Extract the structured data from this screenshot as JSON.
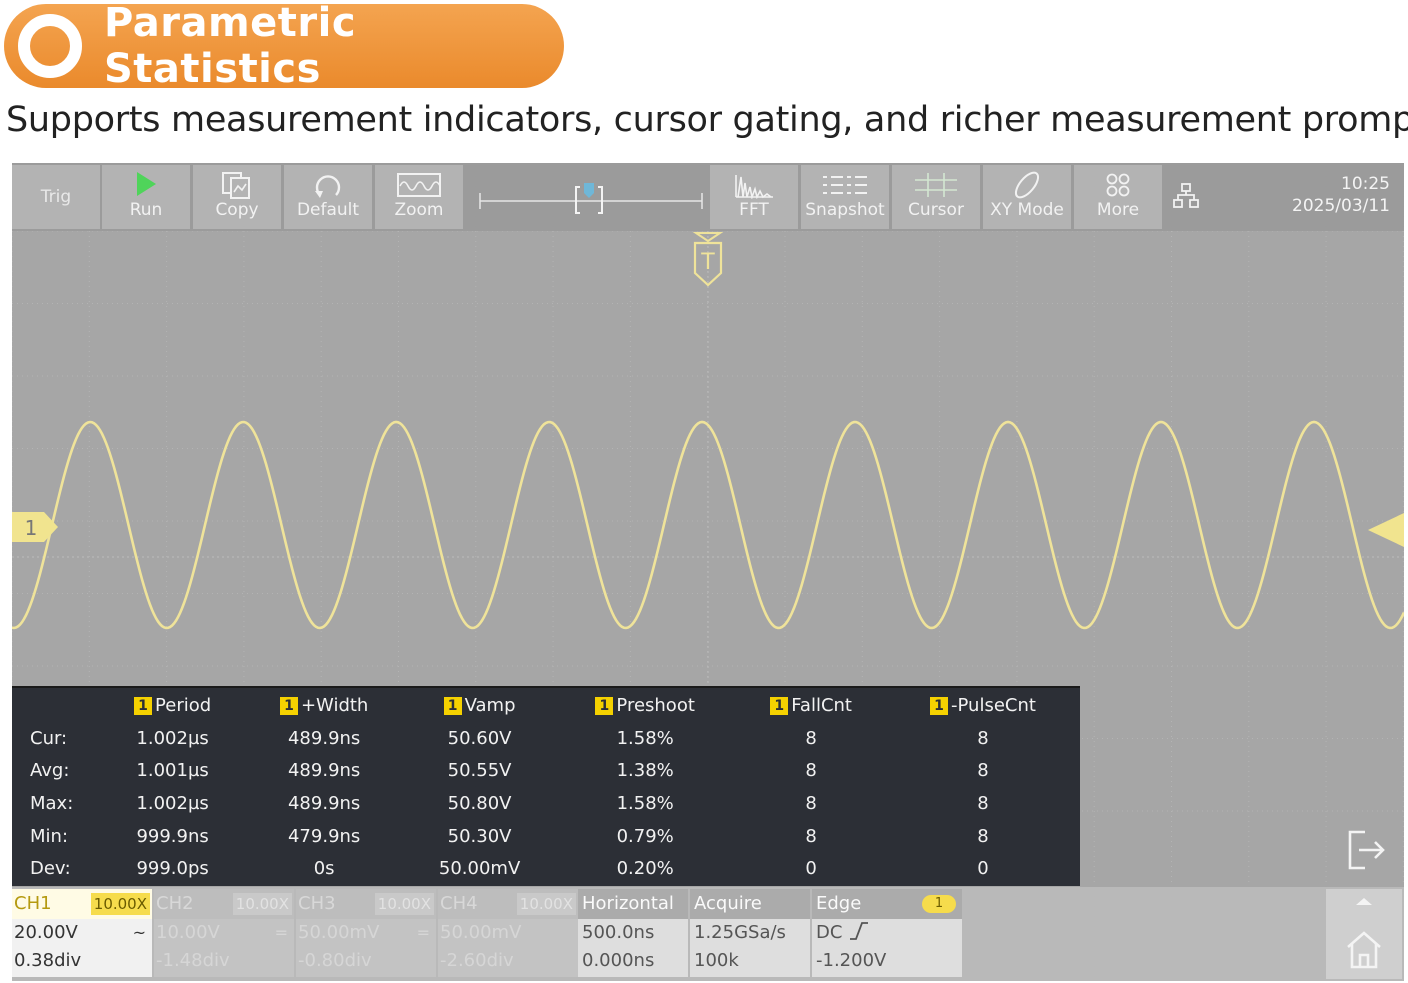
{
  "banner": {
    "title": "Parametric Statistics"
  },
  "subtitle": "Supports measurement indicators, cursor gating, and richer measurement prompts.",
  "toolbar": {
    "trig": "Trig",
    "run": "Run",
    "copy": "Copy",
    "default": "Default",
    "zoom": "Zoom",
    "fft": "FFT",
    "snapshot": "Snapshot",
    "cursor": "Cursor",
    "xy_mode": "XY Mode",
    "more": "More",
    "time": "10:25",
    "date": "2025/03/11"
  },
  "plot": {
    "trigger_label": "T",
    "ch1_marker": "1",
    "waveform_color": "#efe39a",
    "cycles_visible": 9.1
  },
  "measurements": {
    "channel_badge": "1",
    "headers": [
      "Period",
      "+Width",
      "Vamp",
      "Preshoot",
      "FallCnt",
      "-PulseCnt"
    ],
    "rows": [
      {
        "label": "Cur:",
        "values": [
          "1.002µs",
          "489.9ns",
          "50.60V",
          "1.58%",
          "8",
          "8"
        ]
      },
      {
        "label": "Avg:",
        "values": [
          "1.001µs",
          "489.9ns",
          "50.55V",
          "1.38%",
          "8",
          "8"
        ]
      },
      {
        "label": "Max:",
        "values": [
          "1.002µs",
          "489.9ns",
          "50.80V",
          "1.58%",
          "8",
          "8"
        ]
      },
      {
        "label": "Min:",
        "values": [
          "999.9ns",
          "479.9ns",
          "50.30V",
          "0.79%",
          "8",
          "8"
        ]
      },
      {
        "label": "Dev:",
        "values": [
          "999.0ps",
          "0s",
          "50.00mV",
          "0.20%",
          "0",
          "0"
        ]
      }
    ]
  },
  "channels": [
    {
      "name": "CH1",
      "probe": "10.00X",
      "scale": "20.00V",
      "offset": "0.38div",
      "coupling": "~"
    },
    {
      "name": "CH2",
      "probe": "10.00X",
      "scale": "10.00V",
      "offset": "-1.48div",
      "coupling": "="
    },
    {
      "name": "CH3",
      "probe": "10.00X",
      "scale": "50.00mV",
      "offset": "-0.80div",
      "coupling": "="
    },
    {
      "name": "CH4",
      "probe": "10.00X",
      "scale": "50.00mV",
      "offset": "-2.60div",
      "coupling": ""
    }
  ],
  "horizontal": {
    "title": "Horizontal",
    "timebase": "500.0ns",
    "position": "0.000ns"
  },
  "acquire": {
    "title": "Acquire",
    "rate": "1.25GSa/s",
    "depth": "100k"
  },
  "edge": {
    "title": "Edge",
    "source": "1",
    "coupling": "DC",
    "level": "-1.200V"
  },
  "colors": {
    "accent_orange": "#ee8f32",
    "trace_yellow": "#efe39a",
    "badge_yellow": "#f5d100"
  }
}
